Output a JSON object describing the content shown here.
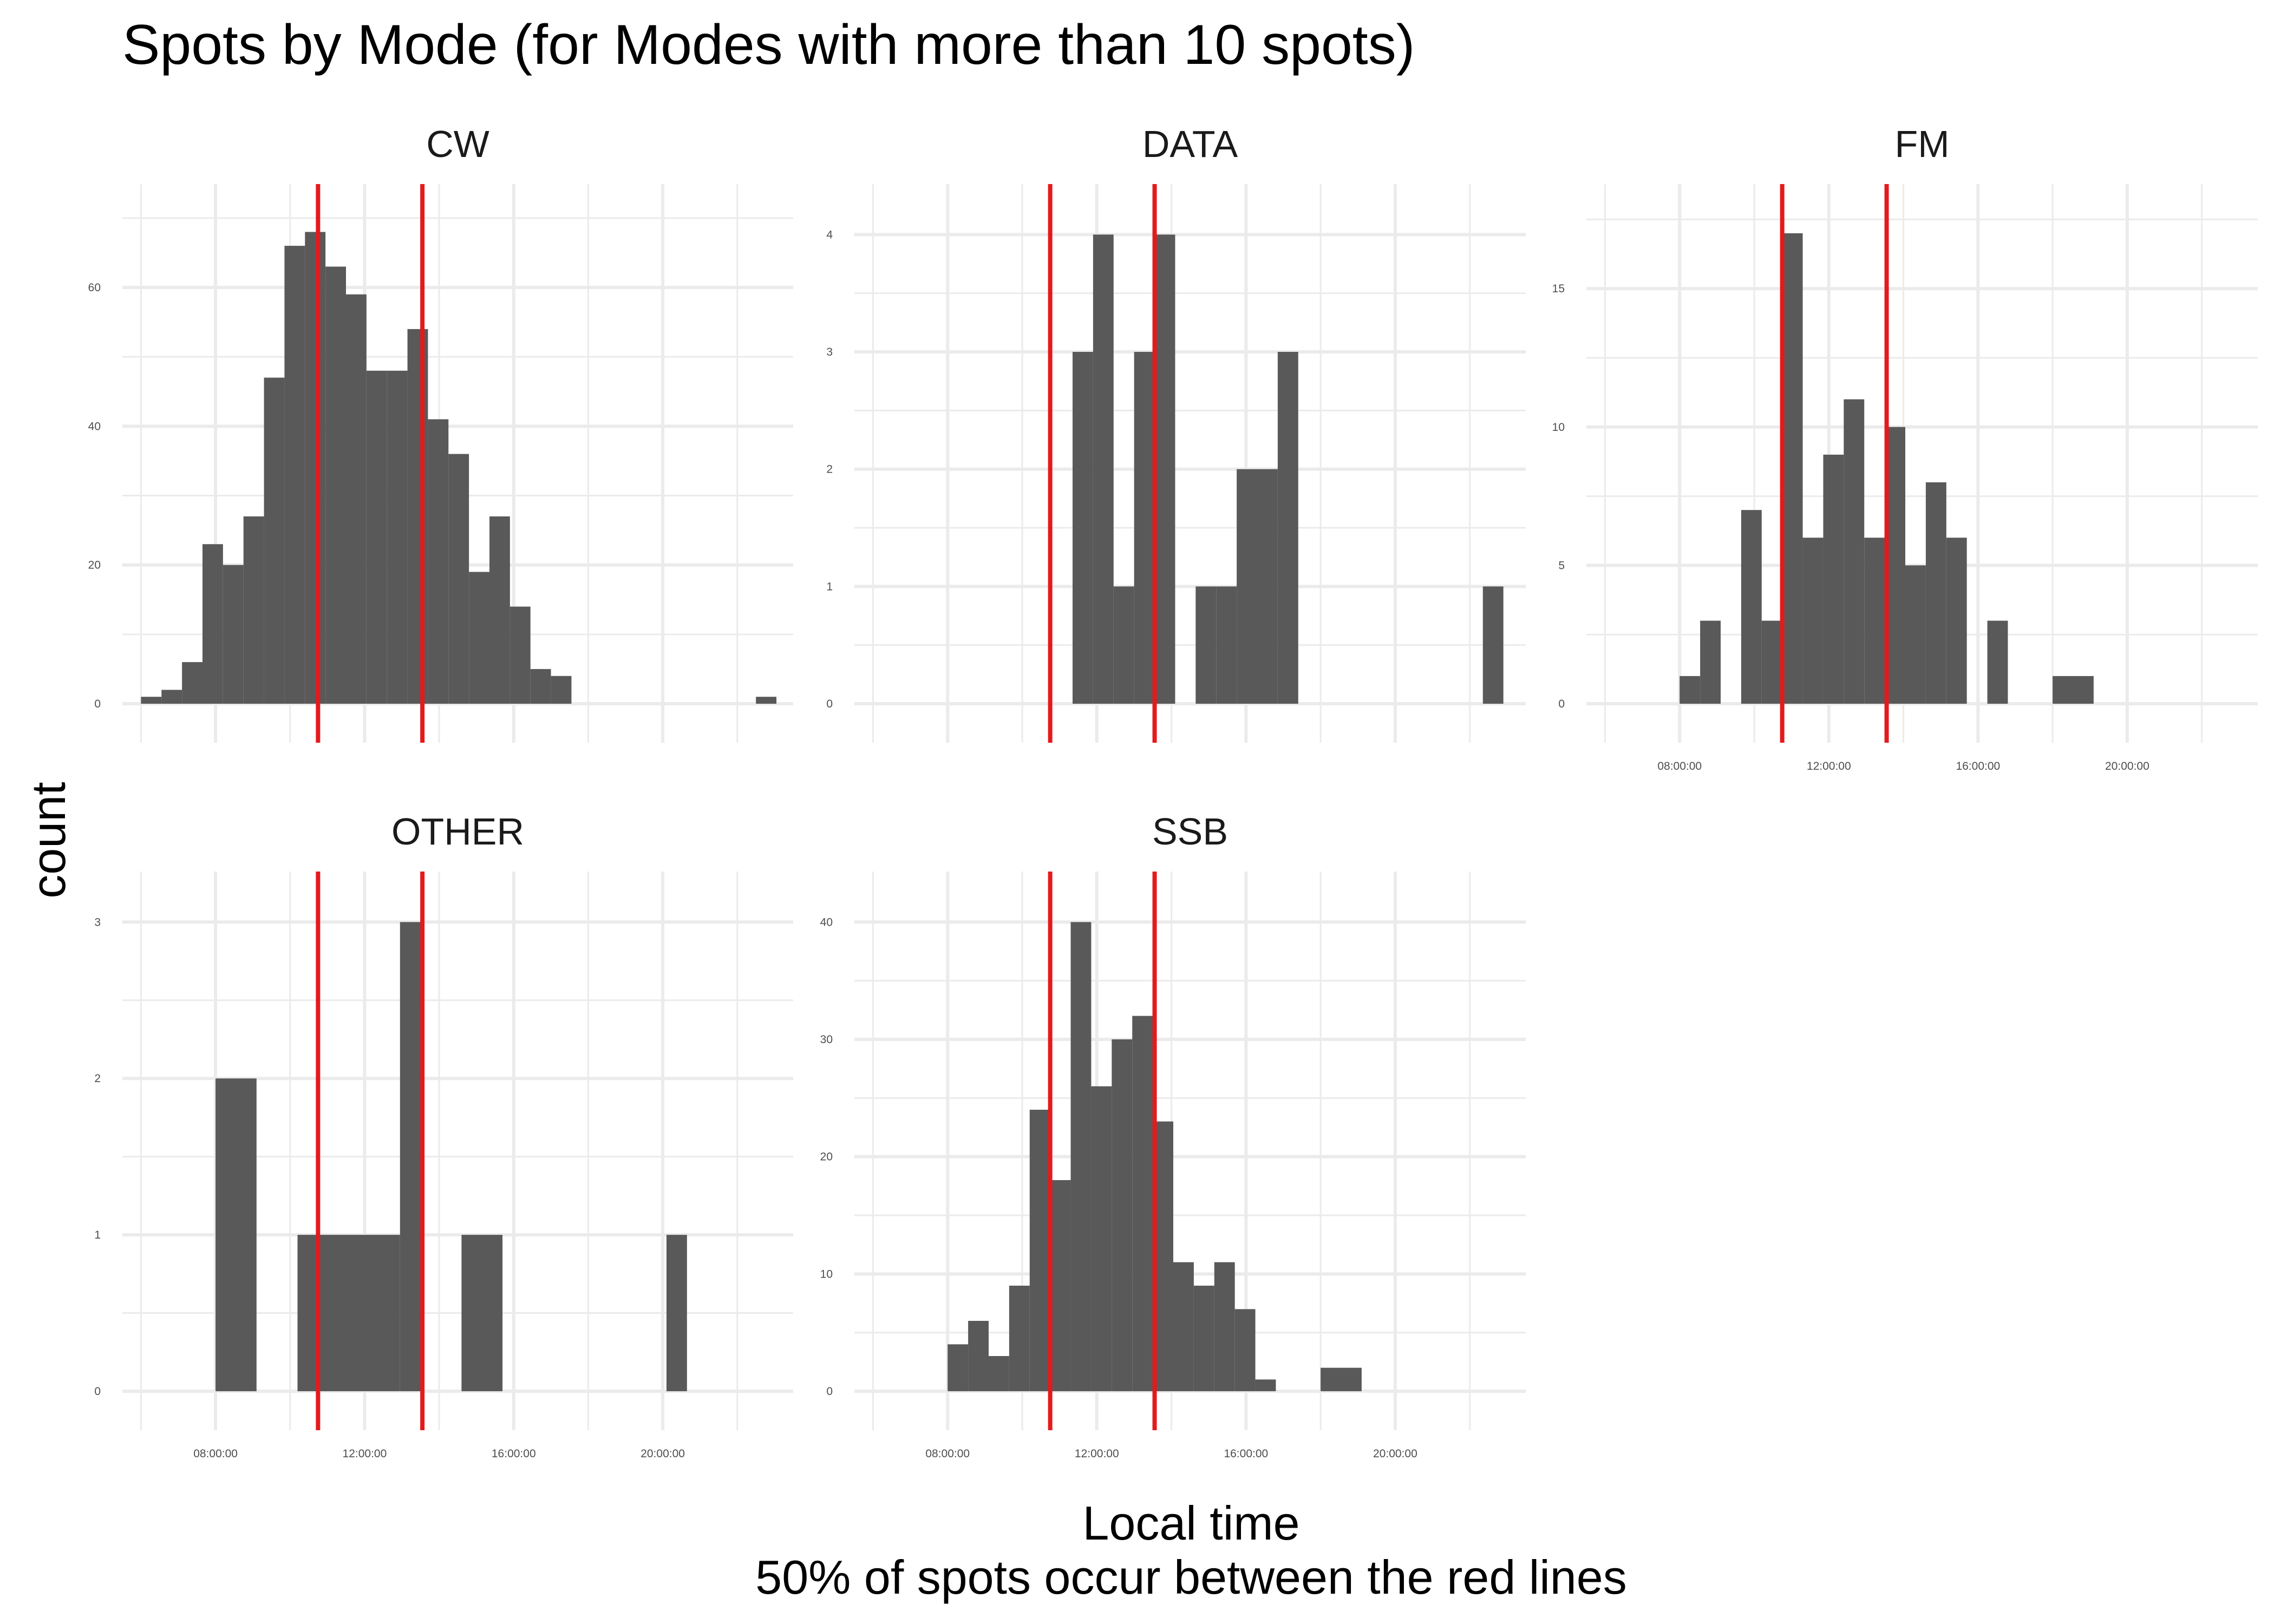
{
  "chart_data": {
    "type": "bar",
    "title": "Spots by Mode (for Modes with more than 10 spots)",
    "xlabel": "Local time",
    "caption": "50% of spots occur between the red lines",
    "ylabel": "count",
    "x_unit": "hour of day (local)",
    "x_tick_labels": [
      "08:00:00",
      "12:00:00",
      "16:00:00",
      "20:00:00"
    ],
    "x_ticks_hours": [
      8,
      12,
      16,
      20
    ],
    "xlim_hours": [
      5.5,
      23.5
    ],
    "grid": true,
    "reference_lines": {
      "color": "#e41a1c",
      "x_hours": [
        10.75,
        13.55
      ],
      "label": "50% of spots occur between the red lines"
    },
    "bar_color": "#595959",
    "panels": [
      {
        "name": "CW",
        "ylim": [
          0,
          71
        ],
        "y_ticks": [
          0,
          20,
          40,
          60
        ],
        "y_tick_labels": [
          "0",
          "20",
          "40",
          "60"
        ],
        "bins": [
          {
            "start": 6.0,
            "end": 6.55,
            "count": 1
          },
          {
            "start": 6.55,
            "end": 7.1,
            "count": 2
          },
          {
            "start": 7.1,
            "end": 7.65,
            "count": 6
          },
          {
            "start": 7.65,
            "end": 8.2,
            "count": 23
          },
          {
            "start": 8.2,
            "end": 8.75,
            "count": 20
          },
          {
            "start": 8.75,
            "end": 9.3,
            "count": 27
          },
          {
            "start": 9.3,
            "end": 9.85,
            "count": 47
          },
          {
            "start": 9.85,
            "end": 10.4,
            "count": 66
          },
          {
            "start": 10.4,
            "end": 10.95,
            "count": 68
          },
          {
            "start": 10.95,
            "end": 11.5,
            "count": 63
          },
          {
            "start": 11.5,
            "end": 12.05,
            "count": 59
          },
          {
            "start": 12.05,
            "end": 12.6,
            "count": 48
          },
          {
            "start": 12.6,
            "end": 13.15,
            "count": 48
          },
          {
            "start": 13.15,
            "end": 13.7,
            "count": 54
          },
          {
            "start": 13.7,
            "end": 14.25,
            "count": 41
          },
          {
            "start": 14.25,
            "end": 14.8,
            "count": 36
          },
          {
            "start": 14.8,
            "end": 15.35,
            "count": 19
          },
          {
            "start": 15.35,
            "end": 15.9,
            "count": 27
          },
          {
            "start": 15.9,
            "end": 16.45,
            "count": 14
          },
          {
            "start": 16.45,
            "end": 17.0,
            "count": 5
          },
          {
            "start": 17.0,
            "end": 17.55,
            "count": 4
          },
          {
            "start": 22.5,
            "end": 23.05,
            "count": 1
          }
        ]
      },
      {
        "name": "DATA",
        "ylim": [
          0,
          4.2
        ],
        "y_ticks": [
          0,
          1,
          2,
          3,
          4
        ],
        "y_tick_labels": [
          "0",
          "1",
          "2",
          "3",
          "4"
        ],
        "bins": [
          {
            "start": 11.35,
            "end": 11.9,
            "count": 3
          },
          {
            "start": 11.9,
            "end": 12.45,
            "count": 4
          },
          {
            "start": 12.45,
            "end": 13.0,
            "count": 1
          },
          {
            "start": 13.0,
            "end": 13.55,
            "count": 3
          },
          {
            "start": 13.55,
            "end": 14.1,
            "count": 4
          },
          {
            "start": 14.65,
            "end": 15.2,
            "count": 1
          },
          {
            "start": 15.2,
            "end": 15.75,
            "count": 1
          },
          {
            "start": 15.75,
            "end": 16.3,
            "count": 2
          },
          {
            "start": 16.3,
            "end": 16.85,
            "count": 2
          },
          {
            "start": 16.85,
            "end": 17.4,
            "count": 3
          },
          {
            "start": 22.35,
            "end": 22.9,
            "count": 1
          }
        ]
      },
      {
        "name": "FM",
        "ylim": [
          0,
          17.8
        ],
        "y_ticks": [
          0,
          5,
          10,
          15
        ],
        "y_tick_labels": [
          "0",
          "5",
          "10",
          "15"
        ],
        "bins": [
          {
            "start": 8.0,
            "end": 8.55,
            "count": 1
          },
          {
            "start": 8.55,
            "end": 9.1,
            "count": 3
          },
          {
            "start": 9.65,
            "end": 10.2,
            "count": 7
          },
          {
            "start": 10.2,
            "end": 10.75,
            "count": 3
          },
          {
            "start": 10.75,
            "end": 11.3,
            "count": 17
          },
          {
            "start": 11.3,
            "end": 11.85,
            "count": 6
          },
          {
            "start": 11.85,
            "end": 12.4,
            "count": 9
          },
          {
            "start": 12.4,
            "end": 12.95,
            "count": 11
          },
          {
            "start": 12.95,
            "end": 13.5,
            "count": 6
          },
          {
            "start": 13.5,
            "end": 14.05,
            "count": 10
          },
          {
            "start": 14.05,
            "end": 14.6,
            "count": 5
          },
          {
            "start": 14.6,
            "end": 15.15,
            "count": 8
          },
          {
            "start": 15.15,
            "end": 15.7,
            "count": 6
          },
          {
            "start": 16.25,
            "end": 16.8,
            "count": 3
          },
          {
            "start": 18.0,
            "end": 19.1,
            "count": 1
          }
        ]
      },
      {
        "name": "OTHER",
        "ylim": [
          0,
          3.15
        ],
        "y_ticks": [
          0,
          1,
          2,
          3
        ],
        "y_tick_labels": [
          "0",
          "1",
          "2",
          "3"
        ],
        "bins": [
          {
            "start": 8.0,
            "end": 9.1,
            "count": 2
          },
          {
            "start": 10.2,
            "end": 12.95,
            "count": 1
          },
          {
            "start": 12.95,
            "end": 13.5,
            "count": 3
          },
          {
            "start": 14.6,
            "end": 15.7,
            "count": 1
          },
          {
            "start": 20.1,
            "end": 20.65,
            "count": 1
          }
        ]
      },
      {
        "name": "SSB",
        "ylim": [
          0,
          42
        ],
        "y_ticks": [
          0,
          10,
          20,
          30,
          40
        ],
        "y_tick_labels": [
          "0",
          "10",
          "20",
          "30",
          "40"
        ],
        "bins": [
          {
            "start": 8.0,
            "end": 8.55,
            "count": 4
          },
          {
            "start": 8.55,
            "end": 9.1,
            "count": 6
          },
          {
            "start": 9.1,
            "end": 9.65,
            "count": 3
          },
          {
            "start": 9.65,
            "end": 10.2,
            "count": 9
          },
          {
            "start": 10.2,
            "end": 10.75,
            "count": 24
          },
          {
            "start": 10.75,
            "end": 11.3,
            "count": 18
          },
          {
            "start": 11.3,
            "end": 11.85,
            "count": 40
          },
          {
            "start": 11.85,
            "end": 12.4,
            "count": 26
          },
          {
            "start": 12.4,
            "end": 12.95,
            "count": 30
          },
          {
            "start": 12.95,
            "end": 13.5,
            "count": 32
          },
          {
            "start": 13.5,
            "end": 14.05,
            "count": 23
          },
          {
            "start": 14.05,
            "end": 14.6,
            "count": 11
          },
          {
            "start": 14.6,
            "end": 15.15,
            "count": 9
          },
          {
            "start": 15.15,
            "end": 15.7,
            "count": 11
          },
          {
            "start": 15.7,
            "end": 16.25,
            "count": 7
          },
          {
            "start": 16.25,
            "end": 16.8,
            "count": 1
          },
          {
            "start": 18.0,
            "end": 19.1,
            "count": 2
          }
        ]
      }
    ]
  }
}
